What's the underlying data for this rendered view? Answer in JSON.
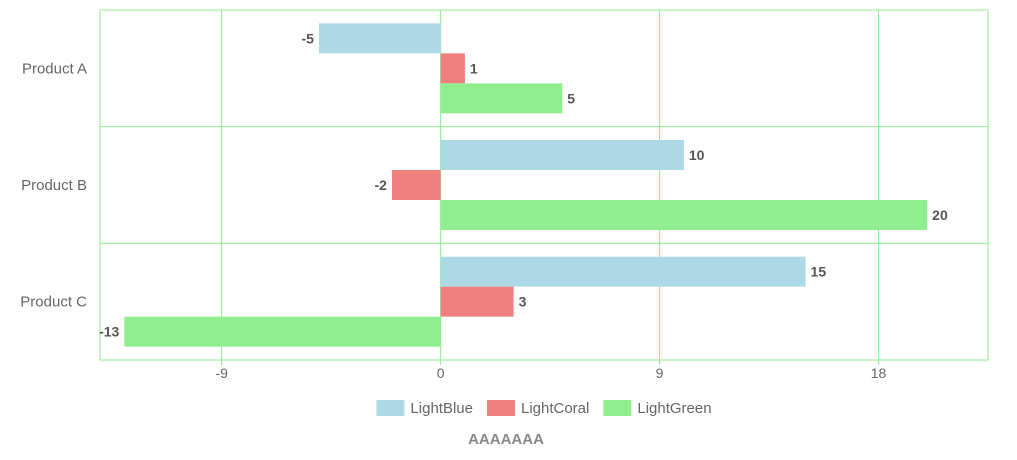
{
  "chart_data": {
    "type": "bar",
    "orientation": "horizontal",
    "categories": [
      "Product A",
      "Product B",
      "Product C"
    ],
    "series": [
      {
        "name": "LightBlue",
        "color": "#ADD8E6",
        "values": [
          -5,
          10,
          15
        ]
      },
      {
        "name": "LightCoral",
        "color": "#F08080",
        "values": [
          1,
          -2,
          3
        ]
      },
      {
        "name": "LightGreen",
        "color": "#90EE90",
        "values": [
          5,
          20,
          -13
        ]
      }
    ],
    "xlim": [
      -14,
      22.5
    ],
    "xticks": [
      -9,
      0,
      9,
      18
    ],
    "xtick_labels": [
      "-9",
      "0",
      "9",
      "18"
    ],
    "xlabel": "AAAAAAA",
    "grid": true,
    "grid_color": "#90EE90",
    "legend_position": "bottom"
  }
}
